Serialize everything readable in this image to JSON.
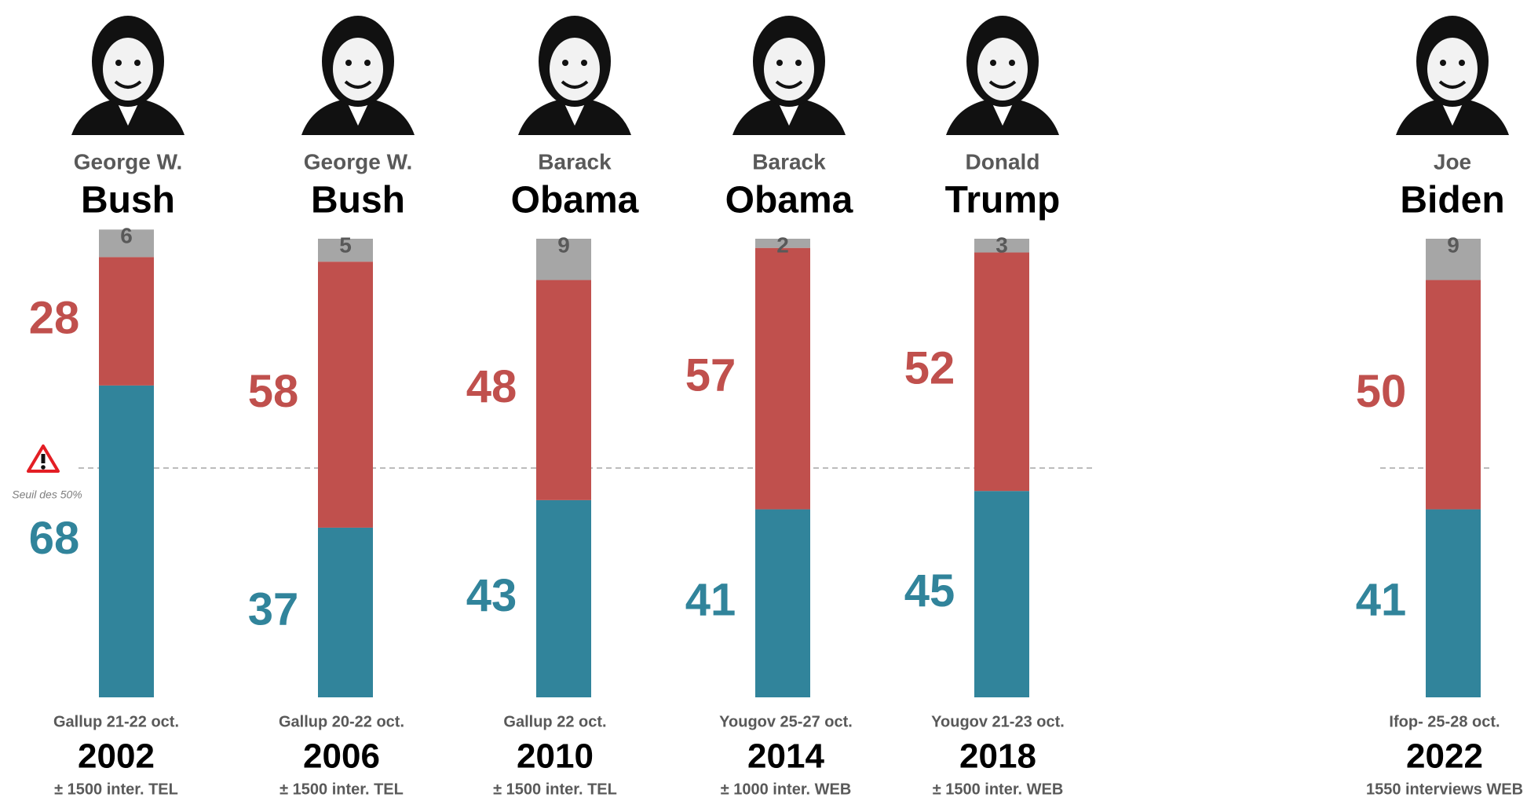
{
  "chart_data": {
    "type": "bar",
    "stacked": true,
    "first_names": [
      "George W.",
      "George W.",
      "Barack",
      "Barack",
      "Donald",
      "Joe"
    ],
    "last_names": [
      "Bush",
      "Bush",
      "Obama",
      "Obama",
      "Trump",
      "Biden"
    ],
    "pollsters": [
      "Gallup 21-22 oct.",
      "Gallup 20-22 oct.",
      "Gallup 22 oct.",
      "Yougov 25-27 oct.",
      "Yougov 21-23 oct.",
      "Ifop- 25-28 oct."
    ],
    "categories": [
      "2002",
      "2006",
      "2010",
      "2014",
      "2018",
      "2022"
    ],
    "samples": [
      "± 1500 inter. TEL",
      "± 1500 inter. TEL",
      "± 1500 inter. TEL",
      "± 1000 inter. WEB",
      "± 1500 inter. WEB",
      "1550 interviews WEB"
    ],
    "series": [
      {
        "color": "#31849b",
        "values": [
          68,
          37,
          43,
          41,
          45,
          41
        ]
      },
      {
        "color": "#c0504d",
        "values": [
          28,
          58,
          48,
          57,
          52,
          50
        ]
      },
      {
        "color": "#a6a6a6",
        "values": [
          6,
          5,
          9,
          2,
          3,
          9
        ]
      }
    ],
    "ylim": [
      0,
      100
    ],
    "threshold": {
      "value": 50,
      "label": "Seuil des 50%"
    }
  }
}
